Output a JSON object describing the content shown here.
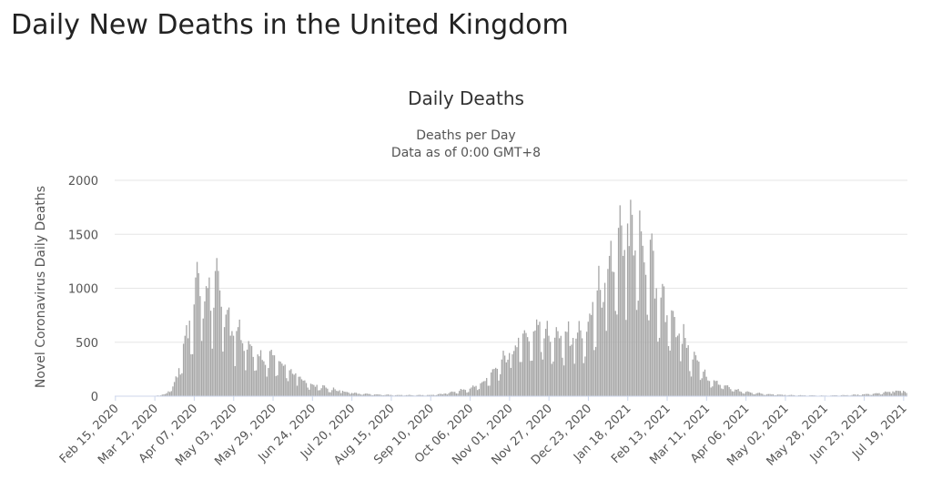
{
  "page": {
    "title": "Daily New Deaths in the United Kingdom"
  },
  "chart_data": {
    "type": "bar",
    "title": "Daily Deaths",
    "subtitle": [
      "Deaths per Day",
      "Data as of 0:00 GMT+8"
    ],
    "xlabel": "",
    "ylabel": "Novel Coronavirus Daily Deaths",
    "ylim": [
      0,
      2000
    ],
    "y_ticks": [
      0,
      500,
      1000,
      1500,
      2000
    ],
    "grid": true,
    "legend": "none",
    "bar_color": "#a6a6a6",
    "x_start": "2020-02-15",
    "x_end": "2021-07-21",
    "x_tick_labels": [
      "Feb 15, 2020",
      "Mar 12, 2020",
      "Apr 07, 2020",
      "May 03, 2020",
      "May 29, 2020",
      "Jun 24, 2020",
      "Jul 20, 2020",
      "Aug 15, 2020",
      "Sep 10, 2020",
      "Oct 06, 2020",
      "Nov 01, 2020",
      "Nov 27, 2020",
      "Dec 23, 2020",
      "Jan 18, 2021",
      "Feb 13, 2021",
      "Mar 11, 2021",
      "Apr 06, 2021",
      "May 02, 2021",
      "May 28, 2021",
      "Jun 23, 2021",
      "Jul 19, 2021"
    ],
    "series": [
      {
        "name": "",
        "values": [
          {
            "date": "2020-02-15",
            "value": 0
          },
          {
            "date": "2020-03-01",
            "value": 0
          },
          {
            "date": "2020-03-12",
            "value": 2
          },
          {
            "date": "2020-03-19",
            "value": 20
          },
          {
            "date": "2020-03-24",
            "value": 90
          },
          {
            "date": "2020-03-28",
            "value": 260
          },
          {
            "date": "2020-04-01",
            "value": 560
          },
          {
            "date": "2020-04-04",
            "value": 700
          },
          {
            "date": "2020-04-07",
            "value": 850
          },
          {
            "date": "2020-04-08",
            "value": 1100
          },
          {
            "date": "2020-04-10",
            "value": 1140
          },
          {
            "date": "2020-04-13",
            "value": 720
          },
          {
            "date": "2020-04-15",
            "value": 1020
          },
          {
            "date": "2020-04-17",
            "value": 1100
          },
          {
            "date": "2020-04-20",
            "value": 820
          },
          {
            "date": "2020-04-21",
            "value": 1160
          },
          {
            "date": "2020-04-24",
            "value": 980
          },
          {
            "date": "2020-04-27",
            "value": 640
          },
          {
            "date": "2020-04-29",
            "value": 800
          },
          {
            "date": "2020-05-03",
            "value": 560
          },
          {
            "date": "2020-05-06",
            "value": 640
          },
          {
            "date": "2020-05-10",
            "value": 420
          },
          {
            "date": "2020-05-14",
            "value": 480
          },
          {
            "date": "2020-05-20",
            "value": 370
          },
          {
            "date": "2020-05-24",
            "value": 290
          },
          {
            "date": "2020-05-29",
            "value": 380
          },
          {
            "date": "2020-06-03",
            "value": 320
          },
          {
            "date": "2020-06-09",
            "value": 240
          },
          {
            "date": "2020-06-15",
            "value": 180
          },
          {
            "date": "2020-06-24",
            "value": 110
          },
          {
            "date": "2020-07-03",
            "value": 80
          },
          {
            "date": "2020-07-12",
            "value": 55
          },
          {
            "date": "2020-07-20",
            "value": 30
          },
          {
            "date": "2020-08-01",
            "value": 20
          },
          {
            "date": "2020-08-15",
            "value": 12
          },
          {
            "date": "2020-09-01",
            "value": 10
          },
          {
            "date": "2020-09-10",
            "value": 12
          },
          {
            "date": "2020-09-20",
            "value": 25
          },
          {
            "date": "2020-10-01",
            "value": 60
          },
          {
            "date": "2020-10-06",
            "value": 70
          },
          {
            "date": "2020-10-14",
            "value": 130
          },
          {
            "date": "2020-10-20",
            "value": 220
          },
          {
            "date": "2020-10-27",
            "value": 340
          },
          {
            "date": "2020-11-01",
            "value": 400
          },
          {
            "date": "2020-11-05",
            "value": 470
          },
          {
            "date": "2020-11-10",
            "value": 580
          },
          {
            "date": "2020-11-17",
            "value": 600
          },
          {
            "date": "2020-11-21",
            "value": 690
          },
          {
            "date": "2020-11-27",
            "value": 560
          },
          {
            "date": "2020-12-02",
            "value": 640
          },
          {
            "date": "2020-12-08",
            "value": 600
          },
          {
            "date": "2020-12-13",
            "value": 540
          },
          {
            "date": "2020-12-18",
            "value": 610
          },
          {
            "date": "2020-12-23",
            "value": 690
          },
          {
            "date": "2020-12-29",
            "value": 980
          },
          {
            "date": "2021-01-03",
            "value": 1050
          },
          {
            "date": "2021-01-06",
            "value": 1300
          },
          {
            "date": "2021-01-09",
            "value": 1150
          },
          {
            "date": "2021-01-12",
            "value": 1560
          },
          {
            "date": "2021-01-15",
            "value": 1300
          },
          {
            "date": "2021-01-18",
            "value": 1600
          },
          {
            "date": "2021-01-20",
            "value": 1820
          },
          {
            "date": "2021-01-23",
            "value": 1350
          },
          {
            "date": "2021-01-26",
            "value": 1720
          },
          {
            "date": "2021-01-29",
            "value": 1240
          },
          {
            "date": "2021-02-02",
            "value": 1450
          },
          {
            "date": "2021-02-06",
            "value": 1000
          },
          {
            "date": "2021-02-10",
            "value": 1040
          },
          {
            "date": "2021-02-13",
            "value": 750
          },
          {
            "date": "2021-02-17",
            "value": 790
          },
          {
            "date": "2021-02-21",
            "value": 580
          },
          {
            "date": "2021-02-25",
            "value": 540
          },
          {
            "date": "2021-03-02",
            "value": 340
          },
          {
            "date": "2021-03-06",
            "value": 320
          },
          {
            "date": "2021-03-11",
            "value": 180
          },
          {
            "date": "2021-03-17",
            "value": 140
          },
          {
            "date": "2021-03-24",
            "value": 100
          },
          {
            "date": "2021-03-31",
            "value": 60
          },
          {
            "date": "2021-04-06",
            "value": 40
          },
          {
            "date": "2021-04-14",
            "value": 30
          },
          {
            "date": "2021-04-22",
            "value": 20
          },
          {
            "date": "2021-05-02",
            "value": 12
          },
          {
            "date": "2021-05-15",
            "value": 8
          },
          {
            "date": "2021-05-28",
            "value": 6
          },
          {
            "date": "2021-06-10",
            "value": 10
          },
          {
            "date": "2021-06-23",
            "value": 18
          },
          {
            "date": "2021-07-03",
            "value": 28
          },
          {
            "date": "2021-07-12",
            "value": 45
          },
          {
            "date": "2021-07-19",
            "value": 50
          },
          {
            "date": "2021-07-21",
            "value": 30
          }
        ]
      }
    ]
  }
}
